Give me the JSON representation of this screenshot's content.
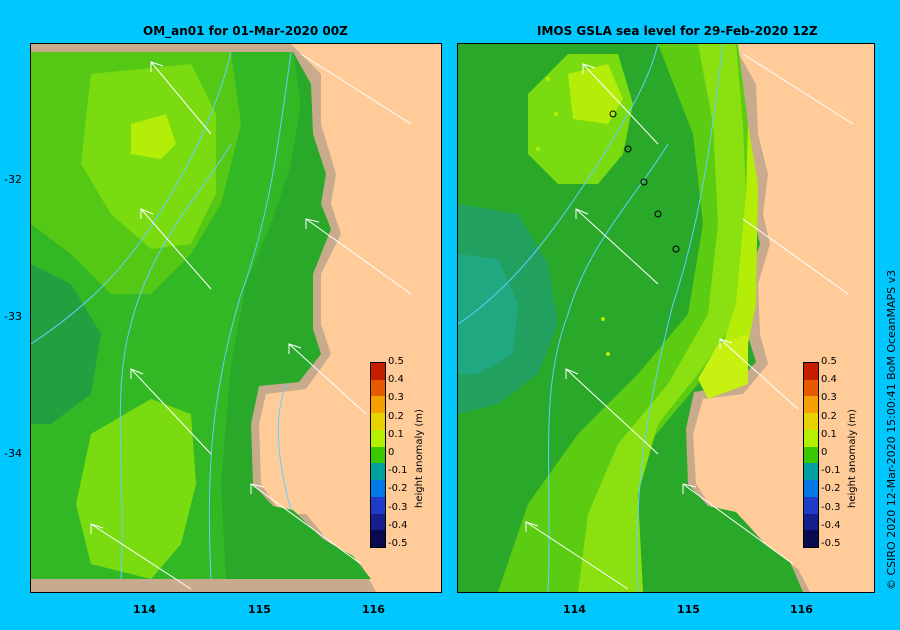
{
  "left_panel": {
    "title": "OM_an01  for 01-Mar-2020 00Z"
  },
  "right_panel": {
    "title": "IMOS GSLA sea level   for 29-Feb-2020 12Z"
  },
  "axes": {
    "y_ticks": [
      "-32",
      "-33",
      "-34"
    ],
    "x_ticks": [
      "114",
      "115",
      "116"
    ]
  },
  "colorbar": {
    "title": "height anomaly (m)",
    "ticks": [
      "0.5",
      "0.4",
      "0.3",
      "0.2",
      "0.1",
      "0",
      "-0.1",
      "-0.2",
      "-0.3",
      "-0.4",
      "-0.5"
    ],
    "colors": [
      "#c81e00",
      "#e65a00",
      "#f5a000",
      "#e6d200",
      "#b4f000",
      "#3cc800",
      "#00a0a0",
      "#0078e6",
      "#1e3cc8",
      "#141e8c",
      "#0a0a50"
    ]
  },
  "credit": "© CSIRO 2020   12-Mar-2020 15:00:41 BoM OceanMAPS v3",
  "colors": {
    "background": "#00c8ff",
    "land": "#ffcc99",
    "shelf": "#c8aa8c"
  }
}
